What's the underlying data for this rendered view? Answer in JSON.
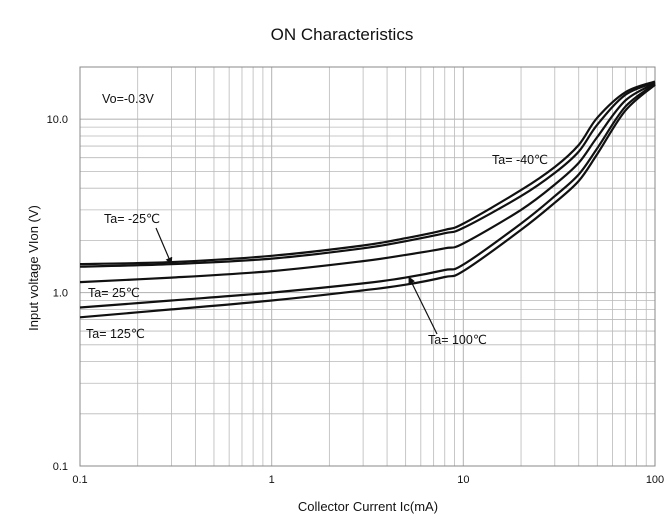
{
  "chart_data": {
    "type": "line",
    "title": "ON Characteristics",
    "xlabel": "Collector Current   Ic(mA)",
    "ylabel": "Input voltage VIon (V)",
    "xscale": "log",
    "yscale": "log",
    "xlim": [
      0.1,
      100
    ],
    "ylim": [
      0.1,
      20
    ],
    "grid": true,
    "xticks": [
      {
        "value": 0.1,
        "label": "0.1"
      },
      {
        "value": 1,
        "label": "1"
      },
      {
        "value": 10,
        "label": "10"
      },
      {
        "value": 100,
        "label": "100"
      }
    ],
    "yticks": [
      {
        "value": 0.1,
        "label": "0.1"
      },
      {
        "value": 1,
        "label": "1.0"
      },
      {
        "value": 10,
        "label": "10.0"
      }
    ],
    "condition_label": "Vo=-0.3V",
    "series": [
      {
        "name": "Ta= -40℃",
        "x": [
          0.1,
          0.3,
          1,
          3,
          5,
          8,
          10,
          20,
          30,
          40,
          50,
          70,
          100
        ],
        "y": [
          1.46,
          1.5,
          1.63,
          1.87,
          2.06,
          2.3,
          2.5,
          3.9,
          5.3,
          7.1,
          10.2,
          14.3,
          16.5
        ]
      },
      {
        "name": "Ta= -25℃",
        "x": [
          0.1,
          0.3,
          1,
          3,
          5,
          8,
          10,
          20,
          30,
          40,
          50,
          70,
          100
        ],
        "y": [
          1.41,
          1.46,
          1.57,
          1.8,
          1.98,
          2.2,
          2.36,
          3.6,
          4.9,
          6.5,
          9.3,
          13.8,
          16.3
        ]
      },
      {
        "name": "Ta= 25℃",
        "x": [
          0.1,
          0.3,
          1,
          3,
          5,
          8,
          10,
          20,
          30,
          40,
          50,
          70,
          100
        ],
        "y": [
          1.15,
          1.22,
          1.33,
          1.52,
          1.65,
          1.8,
          1.92,
          3.0,
          4.2,
          5.6,
          7.9,
          12.8,
          16.1
        ]
      },
      {
        "name": "Ta= 100℃",
        "x": [
          0.1,
          0.3,
          1,
          3,
          5,
          8,
          10,
          20,
          30,
          40,
          50,
          70,
          100
        ],
        "y": [
          0.82,
          0.9,
          1.0,
          1.13,
          1.22,
          1.35,
          1.45,
          2.5,
          3.6,
          4.8,
          6.8,
          11.8,
          15.9
        ]
      },
      {
        "name": "Ta= 125℃",
        "x": [
          0.1,
          0.3,
          1,
          3,
          5,
          8,
          10,
          20,
          30,
          40,
          50,
          70,
          100
        ],
        "y": [
          0.72,
          0.8,
          0.9,
          1.03,
          1.11,
          1.23,
          1.33,
          2.3,
          3.3,
          4.4,
          6.3,
          11.2,
          15.8
        ]
      }
    ],
    "annotations": [
      {
        "text": "Ta= -40℃",
        "target_series": "Ta= -40℃"
      },
      {
        "text": "Ta= -25℃",
        "target_series": "Ta= -25℃"
      },
      {
        "text": "Ta= 25℃",
        "target_series": "Ta= 25℃"
      },
      {
        "text": "Ta= 100℃",
        "target_series": "Ta= 100℃"
      },
      {
        "text": "Ta= 125℃",
        "target_series": "Ta= 125℃"
      }
    ],
    "colors": {
      "curve": "#111111",
      "grid": "#b9b9b9",
      "axis": "#888888"
    }
  }
}
